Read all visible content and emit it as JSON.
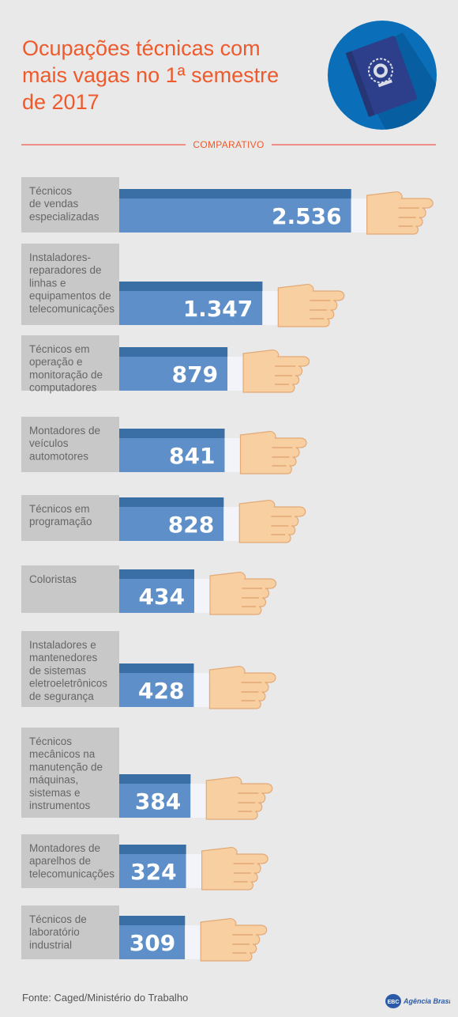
{
  "title_lines": [
    "Ocupações técnicas com",
    "mais vagas no 1ª semestre",
    "de 2017"
  ],
  "section_label": "COMPARATIVO",
  "source": "Fonte: Caged/Ministério do Trabalho",
  "logo": {
    "mark": "EBC",
    "name": "Agência Brasil"
  },
  "colors": {
    "title": "#ee5a2c",
    "bar_light": "#5e8fc8",
    "bar_dark": "#3a6fa6",
    "label_box": "#c8c8c8",
    "hand": "#f8cfa1",
    "hand_stroke": "#e3a976",
    "cuff": "#f2f4fa"
  },
  "chart_data": {
    "type": "bar",
    "orientation": "horizontal",
    "title": "Ocupações técnicas com mais vagas no 1ª semestre de 2017",
    "categories": [
      [
        "Técnicos",
        "de vendas",
        "especializadas"
      ],
      [
        "Instaladores-",
        "reparadores de",
        "linhas e",
        "equipamentos de",
        "telecomunicações"
      ],
      [
        "Técnicos em",
        "operação e",
        "monitoração de",
        "computadores"
      ],
      [
        "Montadores de",
        "veículos",
        "automotores"
      ],
      [
        "Técnicos em",
        "programação"
      ],
      [
        "Coloristas"
      ],
      [
        "Instaladores e",
        "mantenedores",
        "de sistemas",
        "eletroeletrônicos",
        "de segurança"
      ],
      [
        "Técnicos",
        "mecânicos na",
        "manutenção de",
        "máquinas,",
        "sistemas e",
        "instrumentos"
      ],
      [
        "Montadores de",
        "aparelhos de",
        "telecomunicações"
      ],
      [
        "Técnicos de",
        "laboratório",
        "industrial"
      ]
    ],
    "values": [
      2536,
      1347,
      879,
      841,
      828,
      434,
      428,
      384,
      324,
      309
    ],
    "value_labels": [
      "2.536",
      "1.347",
      "879",
      "841",
      "828",
      "434",
      "428",
      "384",
      "324",
      "309"
    ]
  }
}
